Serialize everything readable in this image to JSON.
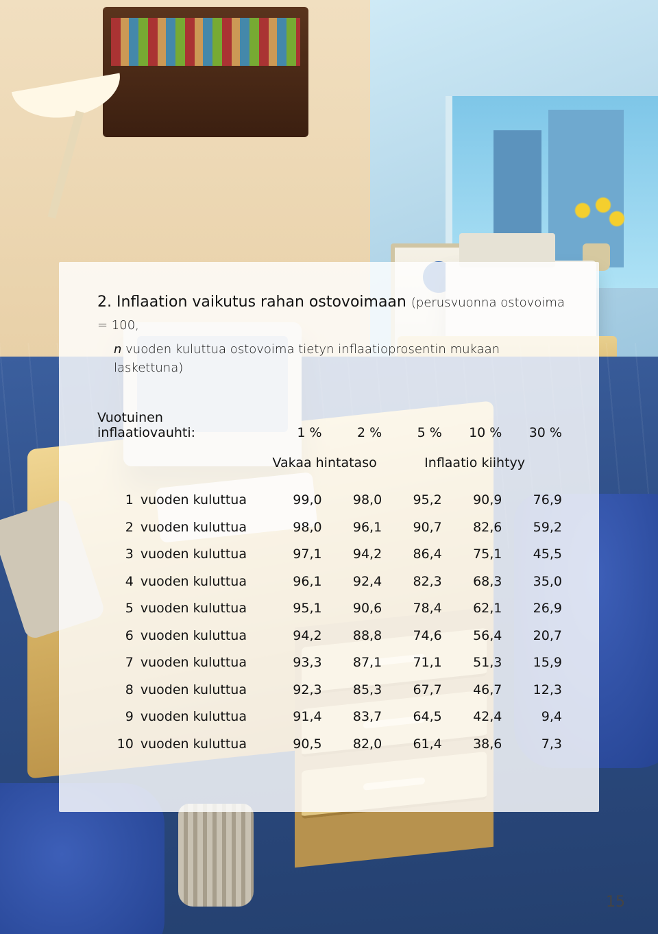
{
  "title": {
    "number": "2.",
    "main": "Inflaation vaikutus rahan ostovoimaan",
    "paren": "(perusvuonna ostovoima = 100,",
    "sub_prefix_italic": "n",
    "sub_rest": " vuoden kuluttua ostovoima tietyn inflaatioprosentin mukaan laskettuna)"
  },
  "header": {
    "left_line1": "Vuotuinen",
    "left_line2": "inflaatiovauhti:",
    "cols": [
      "1 %",
      "2 %",
      "5 %",
      "10 %",
      "30 %"
    ]
  },
  "subheaders": {
    "left": "Vakaa hintataso",
    "right": "Inflaatio kiihtyy"
  },
  "row_label_suffix": "vuoden kuluttua",
  "rows": [
    {
      "n": "1",
      "v": [
        "99,0",
        "98,0",
        "95,2",
        "90,9",
        "76,9"
      ]
    },
    {
      "n": "2",
      "v": [
        "98,0",
        "96,1",
        "90,7",
        "82,6",
        "59,2"
      ]
    },
    {
      "n": "3",
      "v": [
        "97,1",
        "94,2",
        "86,4",
        "75,1",
        "45,5"
      ]
    },
    {
      "n": "4",
      "v": [
        "96,1",
        "92,4",
        "82,3",
        "68,3",
        "35,0"
      ]
    },
    {
      "n": "5",
      "v": [
        "95,1",
        "90,6",
        "78,4",
        "62,1",
        "26,9"
      ]
    },
    {
      "n": "6",
      "v": [
        "94,2",
        "88,8",
        "74,6",
        "56,4",
        "20,7"
      ]
    },
    {
      "n": "7",
      "v": [
        "93,3",
        "87,1",
        "71,1",
        "51,3",
        "15,9"
      ]
    },
    {
      "n": "8",
      "v": [
        "92,3",
        "85,3",
        "67,7",
        "46,7",
        "12,3"
      ]
    },
    {
      "n": "9",
      "v": [
        "91,4",
        "83,7",
        "64,5",
        "42,4",
        "9,4"
      ]
    },
    {
      "n": "10",
      "v": [
        "90,5",
        "82,0",
        "61,4",
        "38,6",
        "7,3"
      ]
    }
  ],
  "page_number": "15",
  "colors": {
    "card_bg": "rgba(255,255,255,0.82)",
    "text": "#121212",
    "floor_a": "#3b5f9e",
    "floor_b": "#24406f",
    "wall_warm": "#e8d0a7",
    "wall_cool": "#9cc6de"
  },
  "typography": {
    "title_fontsize_pt": 16,
    "body_fontsize_pt": 14,
    "font_family": "Verdana / sans-serif"
  }
}
